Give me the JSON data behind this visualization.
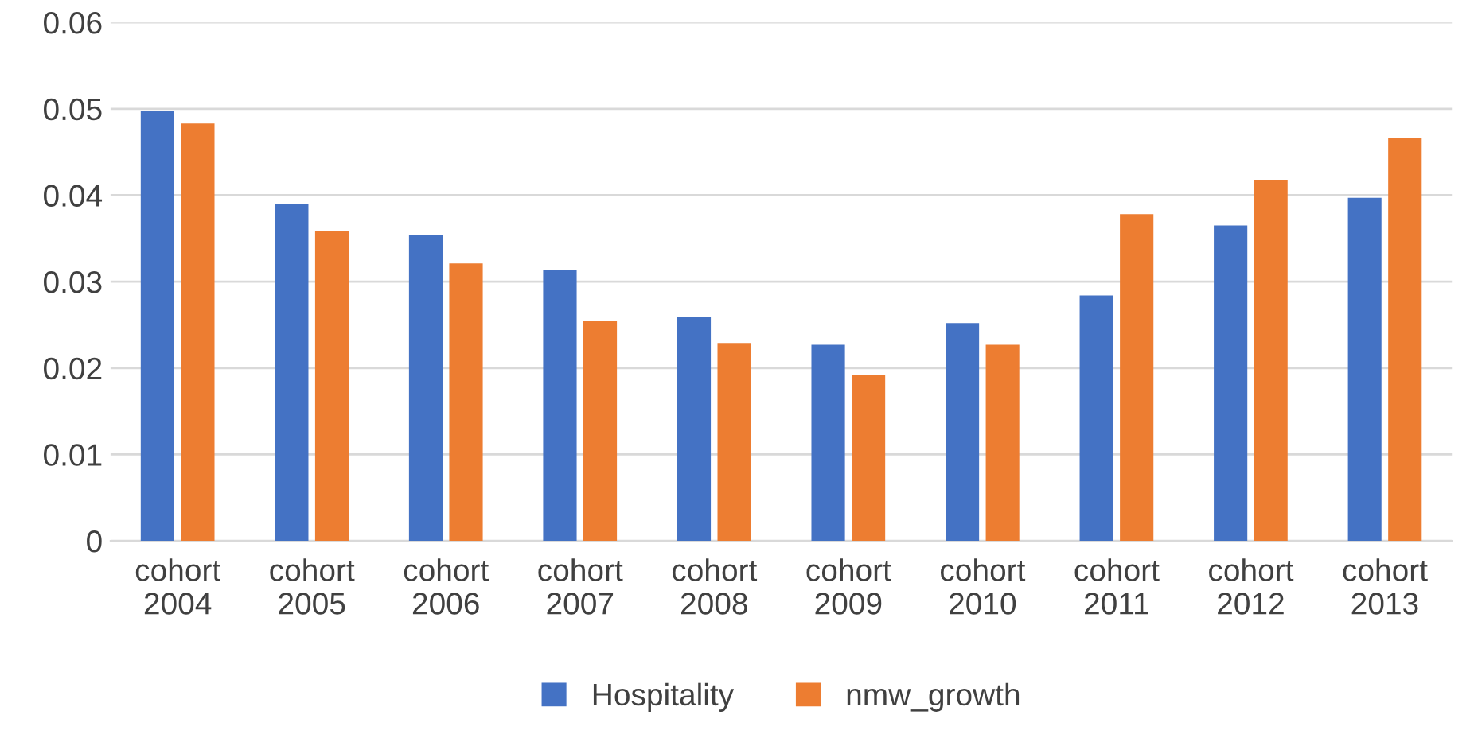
{
  "chart_data": {
    "type": "bar",
    "categories": [
      "cohort\n2004",
      "cohort\n2005",
      "cohort\n2006",
      "cohort\n2007",
      "cohort\n2008",
      "cohort\n2009",
      "cohort\n2010",
      "cohort\n2011",
      "cohort\n2012",
      "cohort\n2013"
    ],
    "series": [
      {
        "name": "Hospitality",
        "color": "#4472c4",
        "values": [
          0.0498,
          0.039,
          0.0354,
          0.0314,
          0.0259,
          0.0227,
          0.0252,
          0.0284,
          0.0365,
          0.0397
        ]
      },
      {
        "name": "nmw_growth",
        "color": "#ed7d31",
        "values": [
          0.0483,
          0.0358,
          0.0321,
          0.0255,
          0.0229,
          0.0192,
          0.0227,
          0.0378,
          0.0418,
          0.0466
        ]
      }
    ],
    "ylim": [
      0,
      0.06
    ],
    "yticks": [
      {
        "value": 0,
        "label": "0"
      },
      {
        "value": 0.01,
        "label": "0.01"
      },
      {
        "value": 0.02,
        "label": "0.02"
      },
      {
        "value": 0.03,
        "label": "0.03"
      },
      {
        "value": 0.04,
        "label": "0.04"
      },
      {
        "value": 0.05,
        "label": "0.05"
      },
      {
        "value": 0.06,
        "label": "0.06"
      }
    ],
    "grid": "y",
    "legend": "bottom"
  }
}
